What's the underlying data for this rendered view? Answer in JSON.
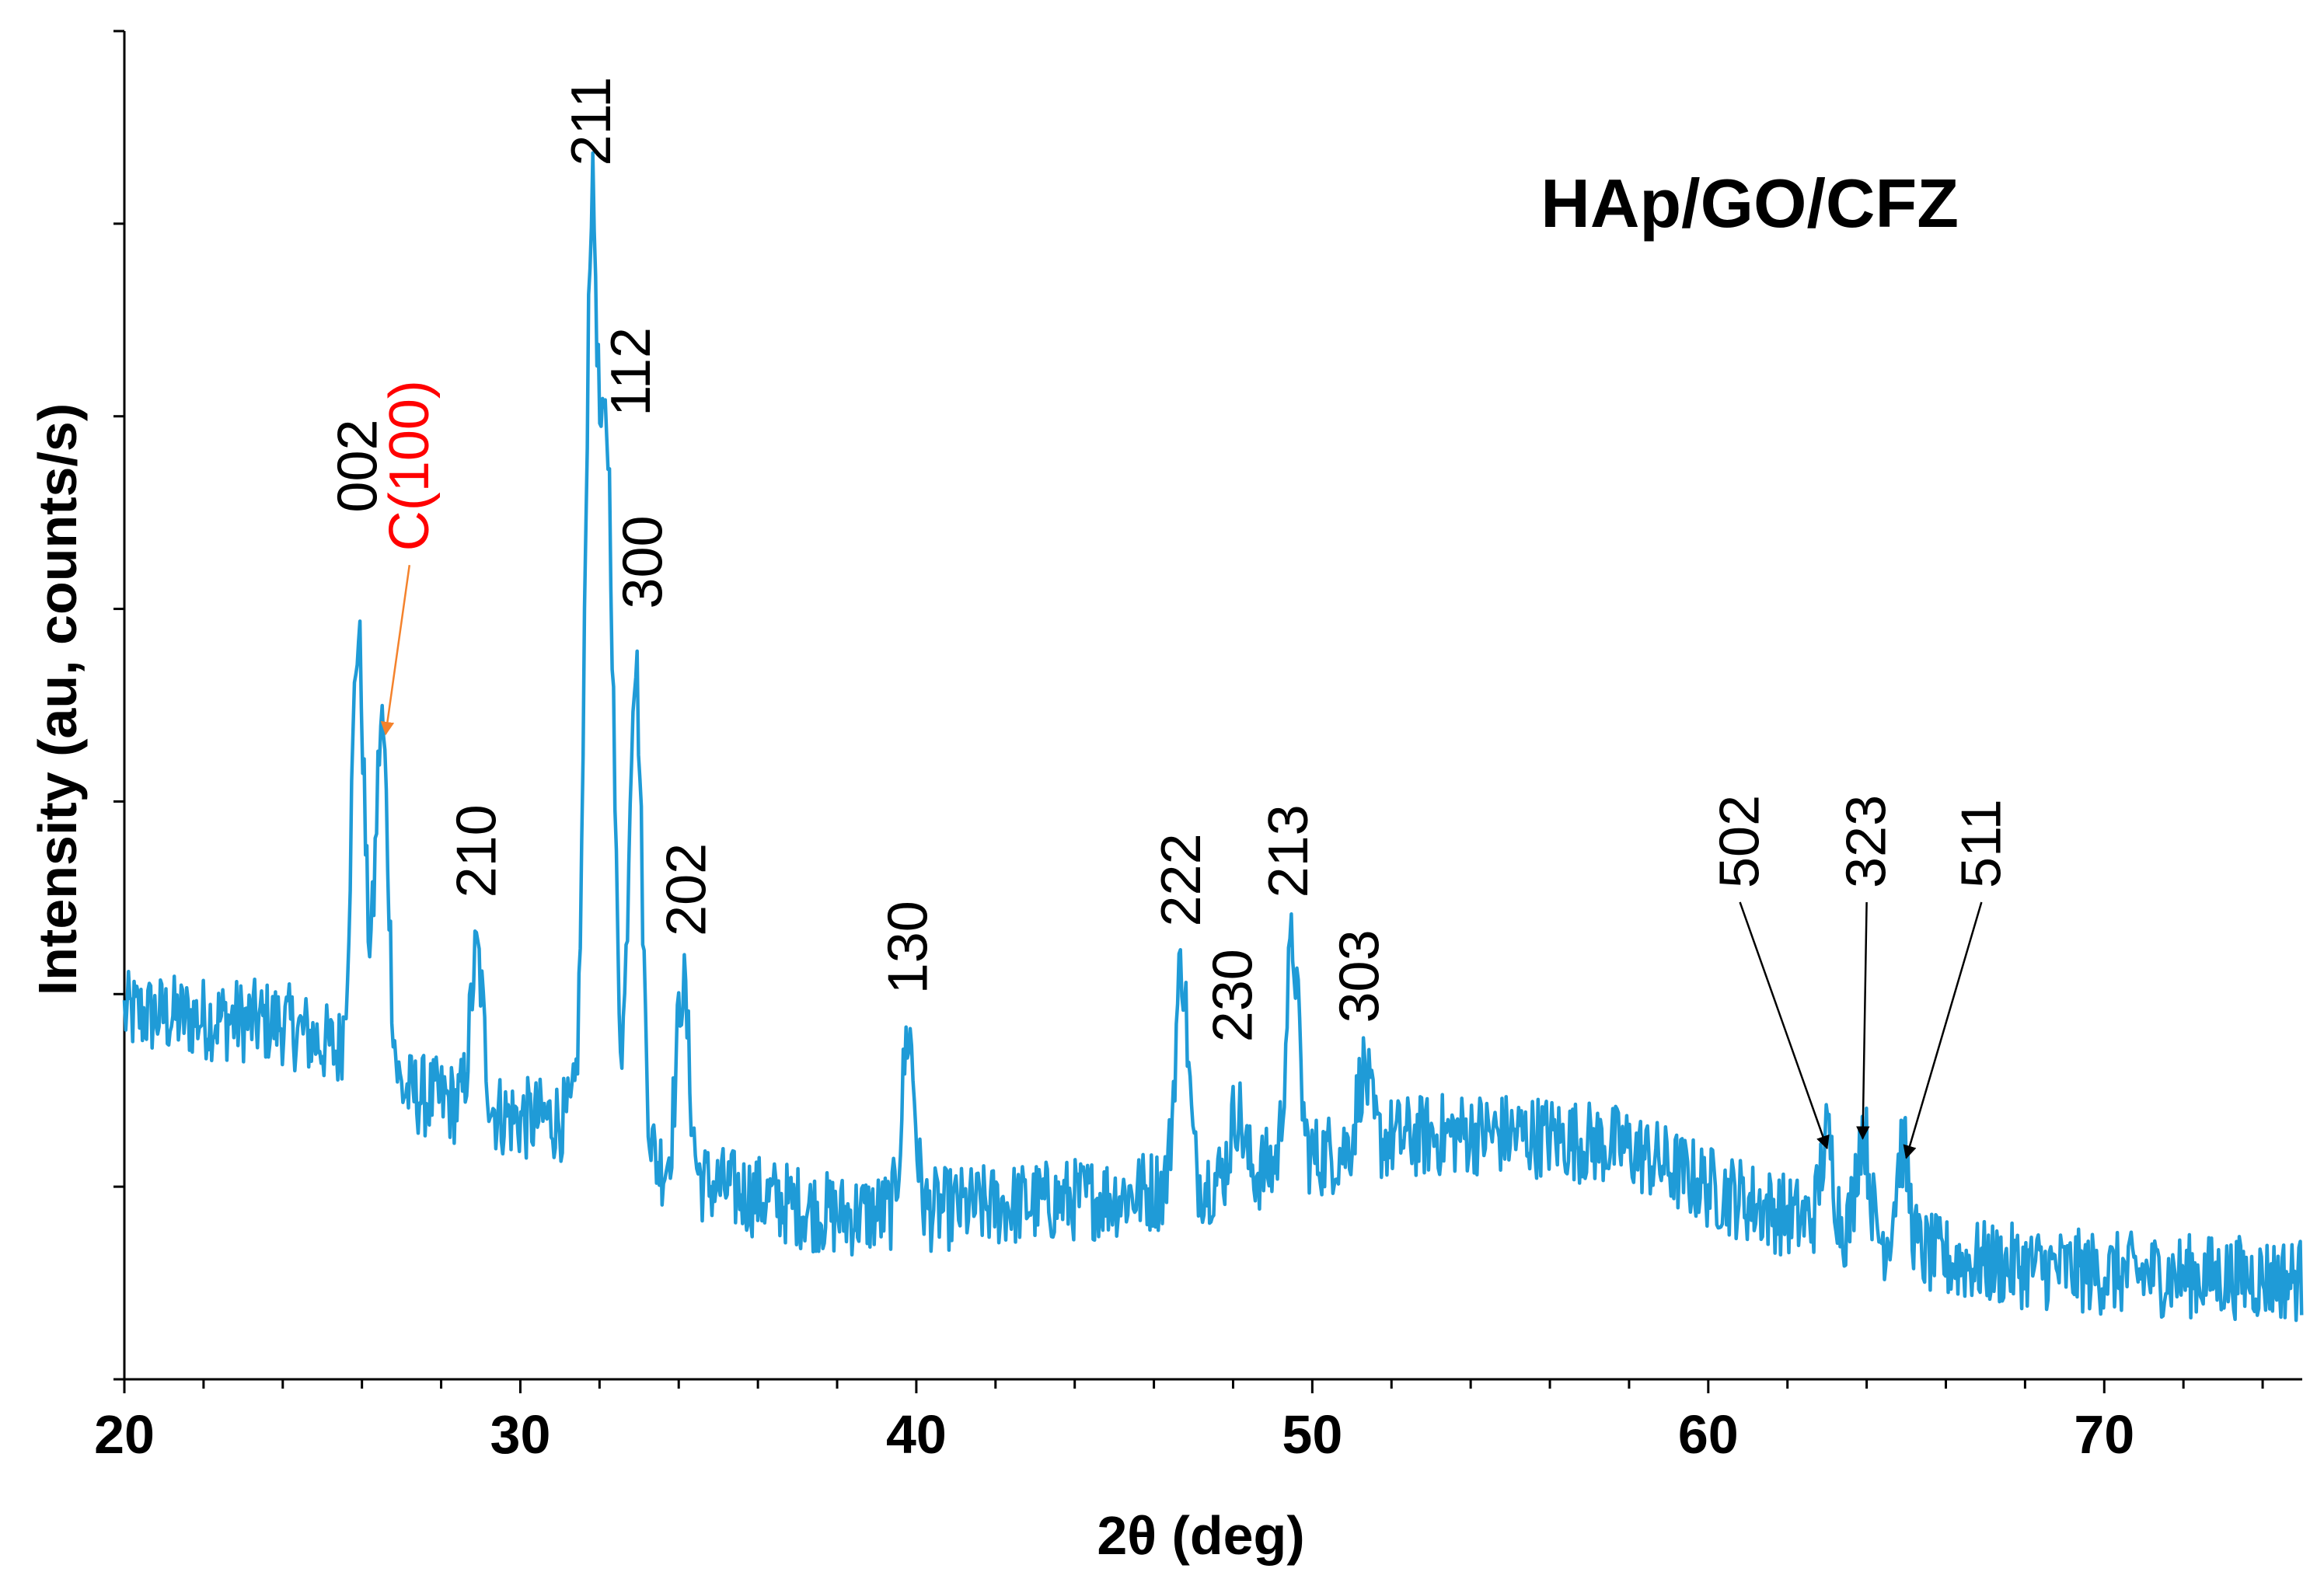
{
  "chart_data": {
    "type": "line",
    "title": "HAp/GO/CFZ",
    "xlabel": "2θ (deg)",
    "ylabel": "Intensity (au, counts/s)",
    "xlim": [
      20,
      75
    ],
    "ylim": [
      0,
      7
    ],
    "x_ticks": [
      20,
      30,
      40,
      50,
      60,
      70
    ],
    "y_ticks_labeled": false,
    "grid": false,
    "series": [
      {
        "name": "HAp/GO/CFZ",
        "color": "#1f9bd7",
        "baseline": [
          [
            20,
            1.9
          ],
          [
            24,
            1.85
          ],
          [
            25,
            1.75
          ],
          [
            27,
            1.5
          ],
          [
            30,
            1.35
          ],
          [
            32,
            1.35
          ],
          [
            34,
            1.05
          ],
          [
            36,
            0.95
          ],
          [
            38,
            0.85
          ],
          [
            42,
            0.9
          ],
          [
            45,
            0.95
          ],
          [
            48,
            1.05
          ],
          [
            50,
            1.15
          ],
          [
            52,
            1.25
          ],
          [
            54,
            1.28
          ],
          [
            56,
            1.26
          ],
          [
            58,
            1.2
          ],
          [
            60,
            1.0
          ],
          [
            62,
            0.85
          ],
          [
            64,
            0.75
          ],
          [
            66,
            0.62
          ],
          [
            70,
            0.55
          ],
          [
            75,
            0.52
          ]
        ],
        "peaks": [
          {
            "two_theta": 25.9,
            "intensity": 3.85
          },
          {
            "two_theta": 26.5,
            "intensity": 3.4
          },
          {
            "two_theta": 28.9,
            "intensity": 2.2
          },
          {
            "two_theta": 31.8,
            "intensity": 6.0
          },
          {
            "two_theta": 32.2,
            "intensity": 4.7
          },
          {
            "two_theta": 32.9,
            "intensity": 3.75
          },
          {
            "two_theta": 34.1,
            "intensity": 2.05
          },
          {
            "two_theta": 39.8,
            "intensity": 1.8
          },
          {
            "two_theta": 46.7,
            "intensity": 2.15
          },
          {
            "two_theta": 48.1,
            "intensity": 1.4
          },
          {
            "two_theta": 49.5,
            "intensity": 2.25
          },
          {
            "two_theta": 51.3,
            "intensity": 1.6
          },
          {
            "two_theta": 63.0,
            "intensity": 1.25
          },
          {
            "two_theta": 63.9,
            "intensity": 1.3
          },
          {
            "two_theta": 64.9,
            "intensity": 1.2
          }
        ],
        "noise_amplitude": 0.22
      }
    ],
    "annotations": [
      {
        "label": "002",
        "two_theta": 25.9,
        "intensity": 4.5,
        "color": "#000000"
      },
      {
        "label": "C(100)",
        "two_theta": 27.2,
        "intensity": 4.3,
        "color": "#ff0000",
        "arrow_to": {
          "two_theta": 26.6,
          "intensity": 3.35
        }
      },
      {
        "label": "210",
        "two_theta": 28.9,
        "intensity": 2.5,
        "color": "#000000"
      },
      {
        "label": "211",
        "two_theta": 31.8,
        "intensity": 6.3,
        "color": "#000000"
      },
      {
        "label": "112",
        "two_theta": 32.8,
        "intensity": 5.0,
        "color": "#000000"
      },
      {
        "label": "300",
        "two_theta": 33.1,
        "intensity": 4.0,
        "color": "#000000"
      },
      {
        "label": "202",
        "two_theta": 34.2,
        "intensity": 2.3,
        "color": "#000000"
      },
      {
        "label": "130",
        "two_theta": 39.8,
        "intensity": 2.0,
        "color": "#000000"
      },
      {
        "label": "222",
        "two_theta": 46.7,
        "intensity": 2.35,
        "color": "#000000"
      },
      {
        "label": "230",
        "two_theta": 48.0,
        "intensity": 1.75,
        "color": "#000000"
      },
      {
        "label": "213",
        "two_theta": 49.4,
        "intensity": 2.5,
        "color": "#000000"
      },
      {
        "label": "303",
        "two_theta": 51.2,
        "intensity": 1.85,
        "color": "#000000"
      },
      {
        "label": "502",
        "two_theta": 60.8,
        "intensity": 2.55,
        "color": "#000000",
        "arrow_to": {
          "two_theta": 63.0,
          "intensity": 1.2
        }
      },
      {
        "label": "323",
        "two_theta": 64.0,
        "intensity": 2.55,
        "color": "#000000",
        "arrow_to": {
          "two_theta": 63.9,
          "intensity": 1.25
        }
      },
      {
        "label": "511",
        "two_theta": 66.9,
        "intensity": 2.55,
        "color": "#000000",
        "arrow_to": {
          "two_theta": 65.0,
          "intensity": 1.15
        }
      }
    ]
  }
}
